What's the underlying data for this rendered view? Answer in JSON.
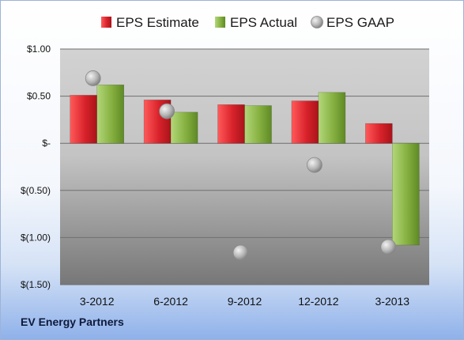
{
  "chart_data": {
    "type": "bar",
    "categories": [
      "3-2012",
      "6-2012",
      "9-2012",
      "12-2012",
      "3-2013"
    ],
    "series": [
      {
        "name": "EPS Estimate",
        "kind": "bar",
        "color": "#d9222b",
        "values": [
          0.51,
          0.46,
          0.41,
          0.45,
          0.21
        ]
      },
      {
        "name": "EPS Actual",
        "kind": "bar",
        "color": "#88b242",
        "values": [
          0.62,
          0.33,
          0.4,
          0.54,
          -1.08
        ]
      },
      {
        "name": "EPS GAAP",
        "kind": "scatter",
        "color": "#b8b8b8",
        "values": [
          0.69,
          0.34,
          -1.16,
          -0.23,
          -1.1
        ]
      }
    ],
    "ylim": [
      -1.5,
      1.0
    ],
    "yticks": [
      1.0,
      0.5,
      0,
      -0.5,
      -1.0,
      -1.5
    ],
    "ytick_labels": [
      "$1.00",
      "$0.50",
      "$-",
      "$(0.50)",
      "$(1.00)",
      "$(1.50)"
    ],
    "legend_position": "top",
    "grid": true
  },
  "footer": {
    "company": "EV Energy Partners"
  }
}
